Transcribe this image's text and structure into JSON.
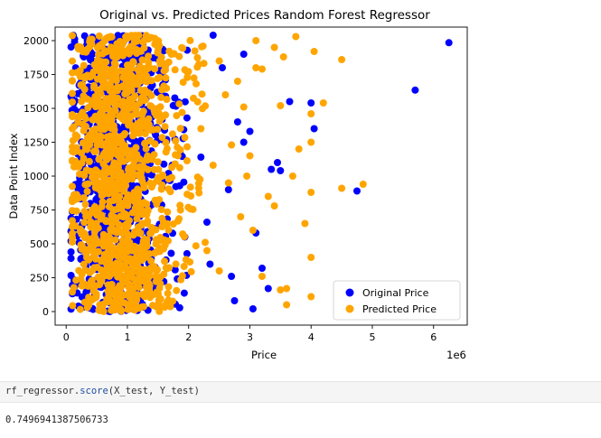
{
  "chart_data": {
    "type": "scatter",
    "title": "Original vs. Predicted Prices Random Forest Regressor",
    "xlabel": "Price",
    "ylabel": "Data Point Index",
    "x_offset_label": "1e6",
    "xlim": [
      -180000,
      6550000
    ],
    "ylim": [
      -100,
      2100
    ],
    "x_ticks": [
      0,
      1,
      2,
      3,
      4,
      5,
      6
    ],
    "x_tick_labels": [
      "0",
      "1",
      "2",
      "3",
      "4",
      "5",
      "6"
    ],
    "y_ticks": [
      0,
      250,
      500,
      750,
      1000,
      1250,
      1500,
      1750,
      2000
    ],
    "y_tick_labels": [
      "0",
      "250",
      "500",
      "750",
      "1000",
      "1250",
      "1500",
      "1750",
      "2000"
    ],
    "grid": false,
    "legend_position": "bottom-right",
    "series": [
      {
        "name": "Original Price",
        "color": "#0000ff",
        "notable_points": [
          [
            6250000,
            1985
          ],
          [
            5700000,
            1635
          ],
          [
            4750000,
            890
          ],
          [
            4000000,
            1540
          ],
          [
            4050000,
            1350
          ],
          [
            3650000,
            1550
          ],
          [
            3350000,
            1050
          ],
          [
            3450000,
            1100
          ],
          [
            3500000,
            1040
          ],
          [
            3200000,
            320
          ],
          [
            3300000,
            170
          ],
          [
            3100000,
            580
          ],
          [
            2900000,
            1900
          ],
          [
            3000000,
            1330
          ],
          [
            2800000,
            1400
          ],
          [
            2650000,
            900
          ],
          [
            2700000,
            260
          ],
          [
            2400000,
            2040
          ],
          [
            2300000,
            660
          ],
          [
            2200000,
            1140
          ],
          [
            2750000,
            80
          ],
          [
            3050000,
            20
          ],
          [
            2550000,
            1800
          ],
          [
            2900000,
            1250
          ],
          [
            2350000,
            350
          ]
        ],
        "cloud": {
          "x_range": [
            80000,
            2000000
          ],
          "x_center": 820000,
          "index_range": [
            0,
            2040
          ],
          "count": 900
        }
      },
      {
        "name": "Predicted Price",
        "color": "#ffa500",
        "notable_points": [
          [
            4850000,
            940
          ],
          [
            4500000,
            1860
          ],
          [
            4500000,
            910
          ],
          [
            4050000,
            1920
          ],
          [
            4000000,
            1460
          ],
          [
            4000000,
            1250
          ],
          [
            4000000,
            880
          ],
          [
            4000000,
            400
          ],
          [
            4000000,
            110
          ],
          [
            3900000,
            650
          ],
          [
            3750000,
            2030
          ],
          [
            3800000,
            1200
          ],
          [
            3700000,
            1000
          ],
          [
            3550000,
            1880
          ],
          [
            3400000,
            1950
          ],
          [
            3500000,
            1520
          ],
          [
            3500000,
            160
          ],
          [
            3600000,
            170
          ],
          [
            3600000,
            50
          ],
          [
            3400000,
            780
          ],
          [
            3300000,
            850
          ],
          [
            3200000,
            1790
          ],
          [
            3100000,
            1800
          ],
          [
            3000000,
            1150
          ],
          [
            3100000,
            2000
          ],
          [
            2900000,
            1510
          ],
          [
            2800000,
            1700
          ],
          [
            2700000,
            1230
          ],
          [
            2600000,
            1600
          ],
          [
            2500000,
            1850
          ],
          [
            2400000,
            1080
          ],
          [
            2300000,
            450
          ],
          [
            2200000,
            1350
          ],
          [
            2500000,
            300
          ],
          [
            3200000,
            260
          ],
          [
            4200000,
            1540
          ],
          [
            2850000,
            700
          ],
          [
            3050000,
            600
          ],
          [
            2950000,
            1000
          ],
          [
            2650000,
            950
          ]
        ],
        "cloud": {
          "x_range": [
            100000,
            2300000
          ],
          "x_center": 900000,
          "index_range": [
            0,
            2040
          ],
          "count": 1200
        }
      }
    ]
  },
  "cell": {
    "code_object": "rf_regressor",
    "code_dot": ".",
    "code_method": "score",
    "code_args": "(X_test, Y_test)",
    "output": "0.7496941387506733"
  }
}
